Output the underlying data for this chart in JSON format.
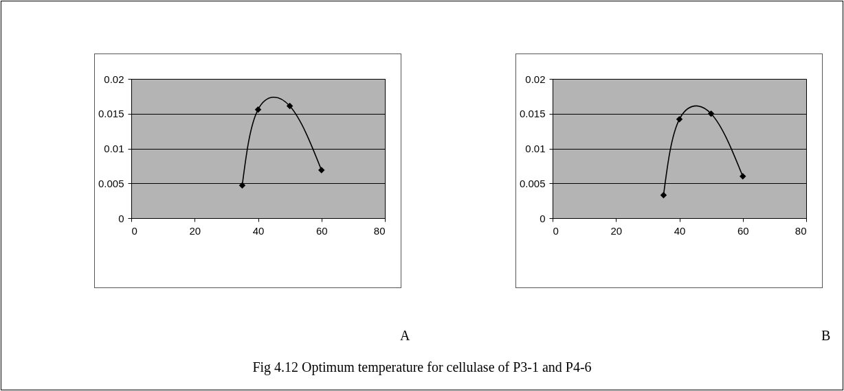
{
  "chart_data": [
    {
      "type": "line",
      "x": [
        35,
        40,
        50,
        60
      ],
      "series": [
        {
          "color": "#000000",
          "values": [
            0.0047,
            0.0156,
            0.0161,
            0.0069
          ]
        }
      ],
      "xlim": [
        0,
        80
      ],
      "xticks": [
        0,
        20,
        40,
        60,
        80
      ],
      "ylim": [
        0,
        0.02
      ],
      "yticks": [
        0,
        0.005,
        0.01,
        0.015,
        0.02
      ],
      "grid": "y",
      "marker": "diamond",
      "line_style": "solid",
      "annotations": [
        "A"
      ]
    },
    {
      "type": "line",
      "x": [
        35,
        40,
        50,
        60
      ],
      "series": [
        {
          "color": "#000000",
          "values": [
            0.0033,
            0.0142,
            0.015,
            0.006
          ]
        }
      ],
      "xlim": [
        0,
        80
      ],
      "xticks": [
        0,
        20,
        40,
        60,
        80
      ],
      "ylim": [
        0,
        0.02
      ],
      "yticks": [
        0,
        0.005,
        0.01,
        0.015,
        0.02
      ],
      "grid": "y",
      "marker": "diamond",
      "line_style": "solid",
      "annotations": [
        "B",
        "Fig 4.12 Optimum temperature for cellulase of P3-1 and P4-6"
      ]
    }
  ]
}
